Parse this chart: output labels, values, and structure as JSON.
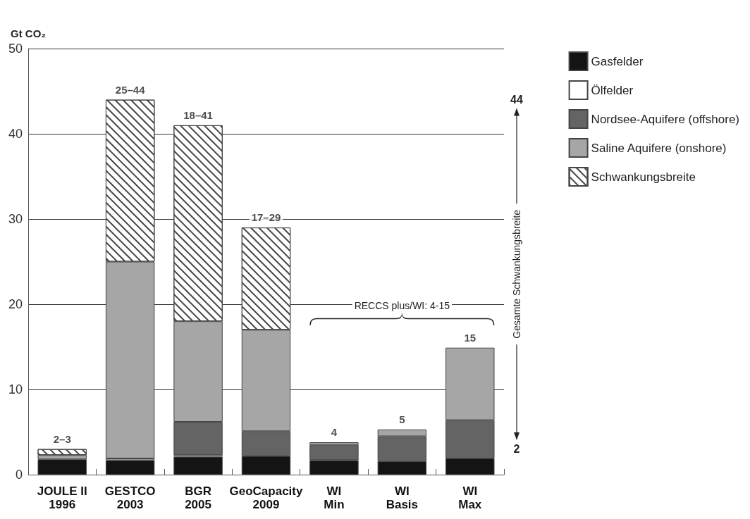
{
  "chart_data": {
    "type": "bar",
    "stacked": true,
    "ylabel": "Gt CO₂",
    "categories": [
      "JOULE II\n1996",
      "GESTCO\n2003",
      "BGR\n2005",
      "GeoCapacity\n2009",
      "WI\nMin",
      "WI\nBasis",
      "WI\nMax"
    ],
    "series": [
      {
        "name": "Gasfelder",
        "color": "#141414",
        "values": [
          1.8,
          1.7,
          2.1,
          2.2,
          1.7,
          1.6,
          1.9
        ]
      },
      {
        "name": "Ölfelder",
        "color": "#ffffff",
        "values": [
          null,
          0.2,
          0.2,
          null,
          null,
          null,
          null
        ]
      },
      {
        "name": "Nordsee-Aquifere (offshore)",
        "color": "#646464",
        "values": [
          null,
          null,
          3.9,
          2.9,
          1.8,
          2.9,
          4.5
        ]
      },
      {
        "name": "Saline Aquifere (onshore)",
        "color": "#a6a6a6",
        "values": [
          0.5,
          23.1,
          11.8,
          11.9,
          0.3,
          0.8,
          8.5
        ]
      },
      {
        "name": "Schwankungsbreite",
        "color": "#ffffff",
        "values": [
          0.7,
          19,
          23,
          12,
          null,
          null,
          null
        ]
      }
    ],
    "totals": [
      "2–3",
      "25–44",
      "18–41",
      "17–29",
      "4",
      "5",
      "15"
    ],
    "ylim": [
      0,
      50
    ],
    "yticks": [
      0,
      10,
      20,
      30,
      40,
      50
    ],
    "grid": "y",
    "legend": "right",
    "annotations": [
      "RECCS plus/WI: 4-15",
      "Gesamte Schwankungsbreite",
      "44",
      "2"
    ]
  }
}
